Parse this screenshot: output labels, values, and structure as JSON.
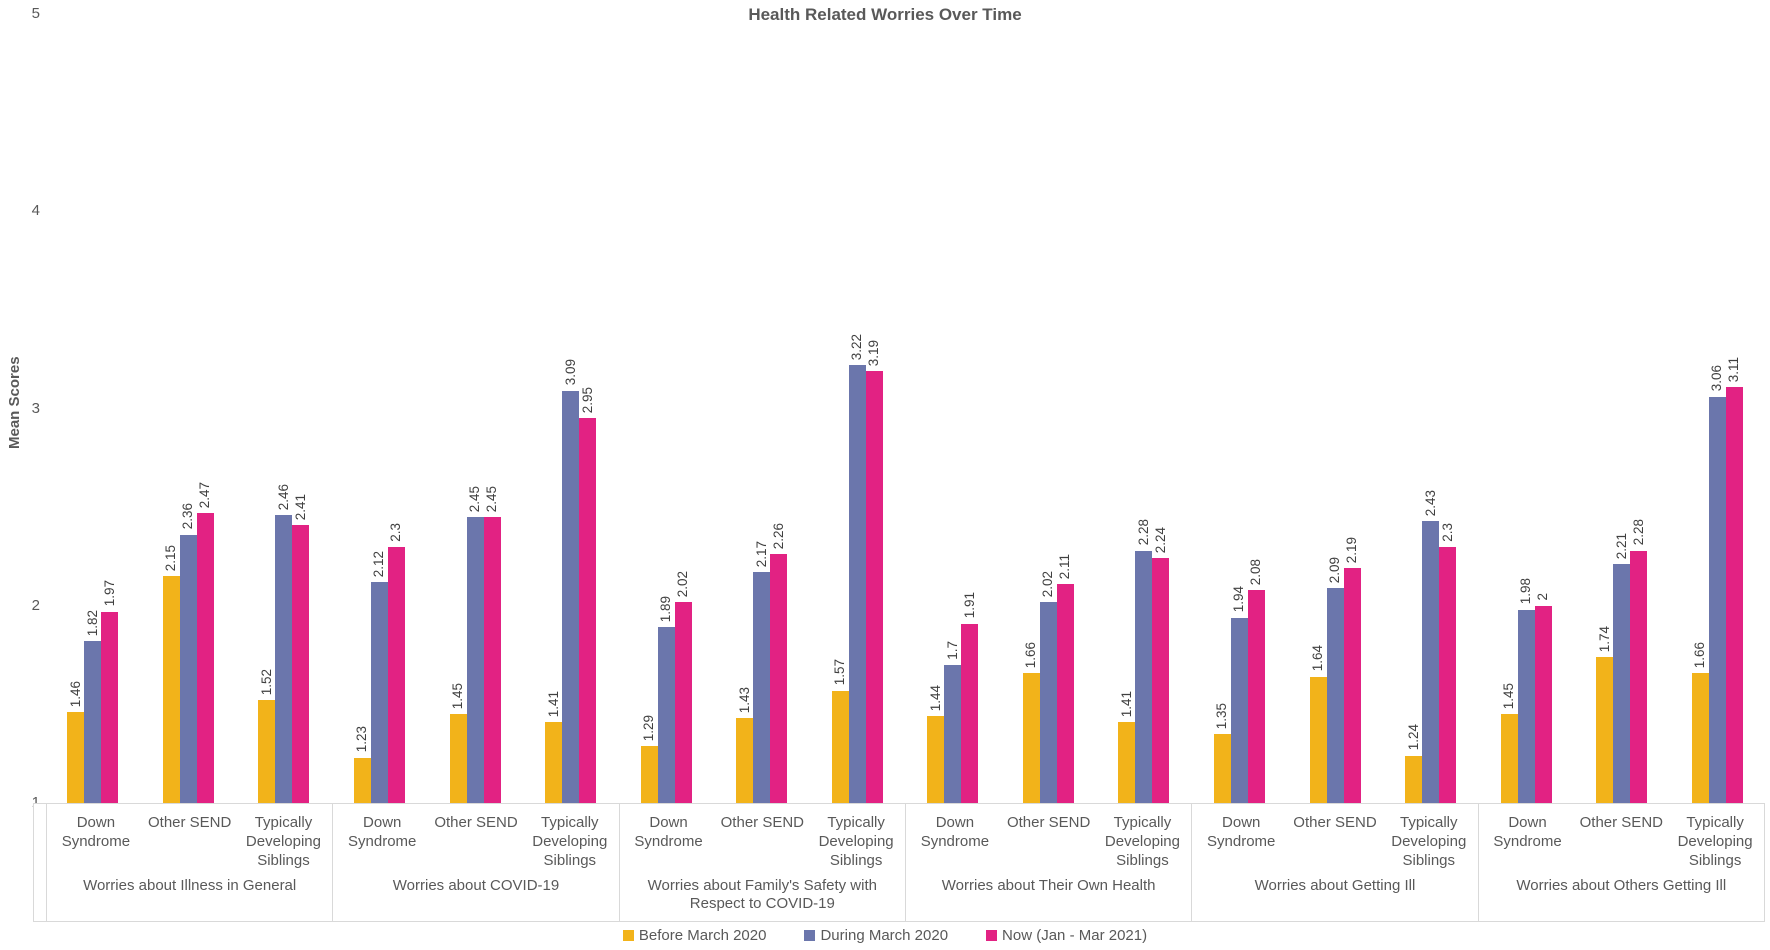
{
  "title": "Health Related Worries Over Time",
  "y_axis": {
    "label": "Mean Scores",
    "min": 1,
    "max": 5,
    "ticks": [
      1,
      2,
      3,
      4,
      5
    ]
  },
  "colors": {
    "before": "#F2B31A",
    "during": "#6B76AC",
    "now": "#E22283",
    "axis_border": "#D9D9D9",
    "text": "#595959",
    "value_label": "#404040"
  },
  "chart_data": {
    "type": "bar",
    "title": "Health Related Worries Over Time",
    "xlabel": "",
    "ylabel": "Mean Scores",
    "ylim": [
      1,
      5
    ],
    "grid": false,
    "legend_position": "bottom",
    "value_labels_rotated": true,
    "categories": [
      "Down Syndrome",
      "Other SEND",
      "Typically Developing Siblings"
    ],
    "series": [
      {
        "name": "Before March 2020",
        "color": "#F2B31A"
      },
      {
        "name": "During March 2020",
        "color": "#6B76AC"
      },
      {
        "name": "Now (Jan - Mar 2021)",
        "color": "#E22283"
      }
    ],
    "groups": [
      {
        "label": "Worries about Illness in General",
        "values": [
          [
            1.46,
            1.82,
            1.97
          ],
          [
            2.15,
            2.36,
            2.47
          ],
          [
            1.52,
            2.46,
            2.41
          ]
        ]
      },
      {
        "label": "Worries about COVID-19",
        "values": [
          [
            1.23,
            2.12,
            2.3
          ],
          [
            1.45,
            2.45,
            2.45
          ],
          [
            1.41,
            3.09,
            2.95
          ]
        ]
      },
      {
        "label": "Worries about Family's Safety with Respect to COVID-19",
        "values": [
          [
            1.29,
            1.89,
            2.02
          ],
          [
            1.43,
            2.17,
            2.26
          ],
          [
            1.57,
            3.22,
            3.19
          ]
        ]
      },
      {
        "label": "Worries about Their Own Health",
        "values": [
          [
            1.44,
            1.7,
            1.91
          ],
          [
            1.66,
            2.02,
            2.11
          ],
          [
            1.41,
            2.28,
            2.24
          ]
        ]
      },
      {
        "label": "Worries about Getting Ill",
        "values": [
          [
            1.35,
            1.94,
            2.08
          ],
          [
            1.64,
            2.09,
            2.19
          ],
          [
            1.24,
            2.43,
            2.3
          ]
        ]
      },
      {
        "label": "Worries about Others Getting Ill",
        "values": [
          [
            1.45,
            1.98,
            2
          ],
          [
            1.74,
            2.21,
            2.28
          ],
          [
            1.66,
            3.06,
            3.11
          ]
        ]
      }
    ]
  }
}
